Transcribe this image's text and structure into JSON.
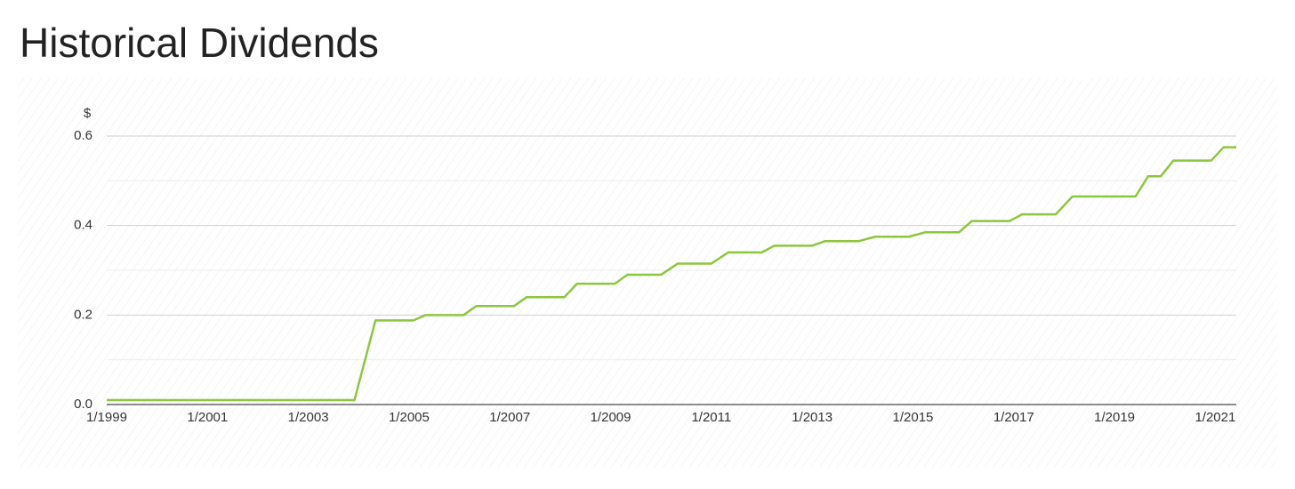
{
  "chart_data": {
    "type": "line",
    "title": "Historical Dividends",
    "y_label": "$",
    "x": [
      "1999-01",
      "2003-12",
      "2004-05",
      "2005-02",
      "2005-05",
      "2006-02",
      "2006-05",
      "2007-02",
      "2007-05",
      "2008-02",
      "2008-05",
      "2009-02",
      "2009-05",
      "2010-01",
      "2010-05",
      "2011-01",
      "2011-05",
      "2012-01",
      "2012-04",
      "2013-01",
      "2013-04",
      "2013-12",
      "2014-04",
      "2014-12",
      "2015-04",
      "2015-12",
      "2016-03",
      "2016-12",
      "2017-03",
      "2017-11",
      "2018-03",
      "2019-06",
      "2019-09",
      "2019-12",
      "2020-03",
      "2020-12",
      "2021-03",
      "2021-06"
    ],
    "values": [
      0.01,
      0.01,
      0.188,
      0.188,
      0.2,
      0.2,
      0.22,
      0.22,
      0.24,
      0.24,
      0.27,
      0.27,
      0.29,
      0.29,
      0.315,
      0.315,
      0.34,
      0.34,
      0.355,
      0.355,
      0.365,
      0.365,
      0.375,
      0.375,
      0.385,
      0.385,
      0.41,
      0.41,
      0.425,
      0.425,
      0.465,
      0.465,
      0.51,
      0.51,
      0.545,
      0.545,
      0.575,
      0.575
    ],
    "color": "#8dc63f",
    "xlim": [
      "1999-01",
      "2021-06"
    ],
    "xticks": [
      {
        "value": "1999-01",
        "label": "1/1999"
      },
      {
        "value": "2001-01",
        "label": "1/2001"
      },
      {
        "value": "2003-01",
        "label": "1/2003"
      },
      {
        "value": "2005-01",
        "label": "1/2005"
      },
      {
        "value": "2007-01",
        "label": "1/2007"
      },
      {
        "value": "2009-01",
        "label": "1/2009"
      },
      {
        "value": "2011-01",
        "label": "1/2011"
      },
      {
        "value": "2013-01",
        "label": "1/2013"
      },
      {
        "value": "2015-01",
        "label": "1/2015"
      },
      {
        "value": "2017-01",
        "label": "1/2017"
      },
      {
        "value": "2019-01",
        "label": "1/2019"
      },
      {
        "value": "2021-01",
        "label": "1/2021"
      }
    ],
    "ylim": [
      0,
      0.6
    ],
    "yticks": [
      {
        "value": 0,
        "label": "0.0"
      },
      0.2,
      0.4,
      0.6
    ],
    "minor_yticks": [
      0.1,
      0.3,
      0.5
    ],
    "grid": true
  }
}
